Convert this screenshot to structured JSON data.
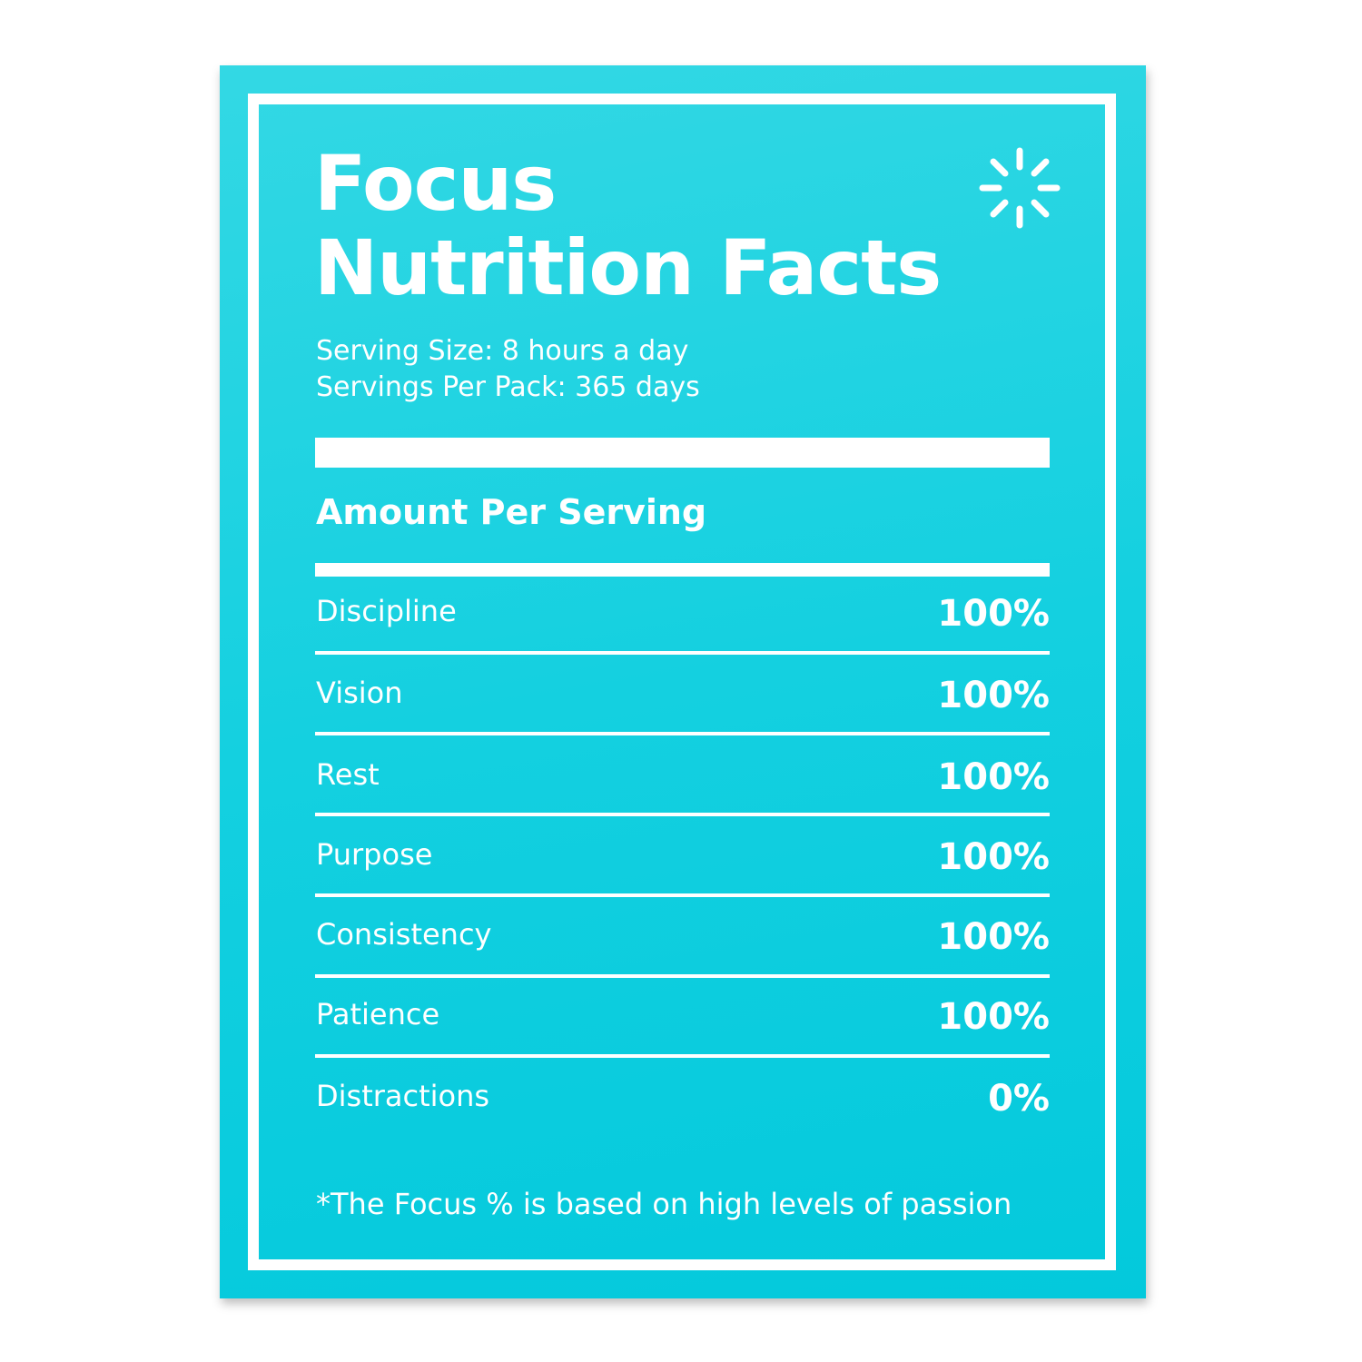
{
  "poster": {
    "title_line1": "Focus",
    "title_line2": "Nutrition Facts",
    "serving_size": "Serving Size: 8 hours a day",
    "servings_per_pack": "Servings Per Pack: 365 days",
    "amount_header": "Amount Per Serving",
    "rows": [
      {
        "label": "Discipline",
        "value": "100%"
      },
      {
        "label": "Vision",
        "value": "100%"
      },
      {
        "label": "Rest",
        "value": "100%"
      },
      {
        "label": "Purpose",
        "value": "100%"
      },
      {
        "label": "Consistency",
        "value": "100%"
      },
      {
        "label": "Patience",
        "value": "100%"
      },
      {
        "label": "Distractions",
        "value": "0%"
      }
    ],
    "footnote": "*The Focus % is based on high levels of passion",
    "icon": "sunburst-icon",
    "colors": {
      "background": "#14d0e0",
      "text": "#ffffff"
    }
  }
}
